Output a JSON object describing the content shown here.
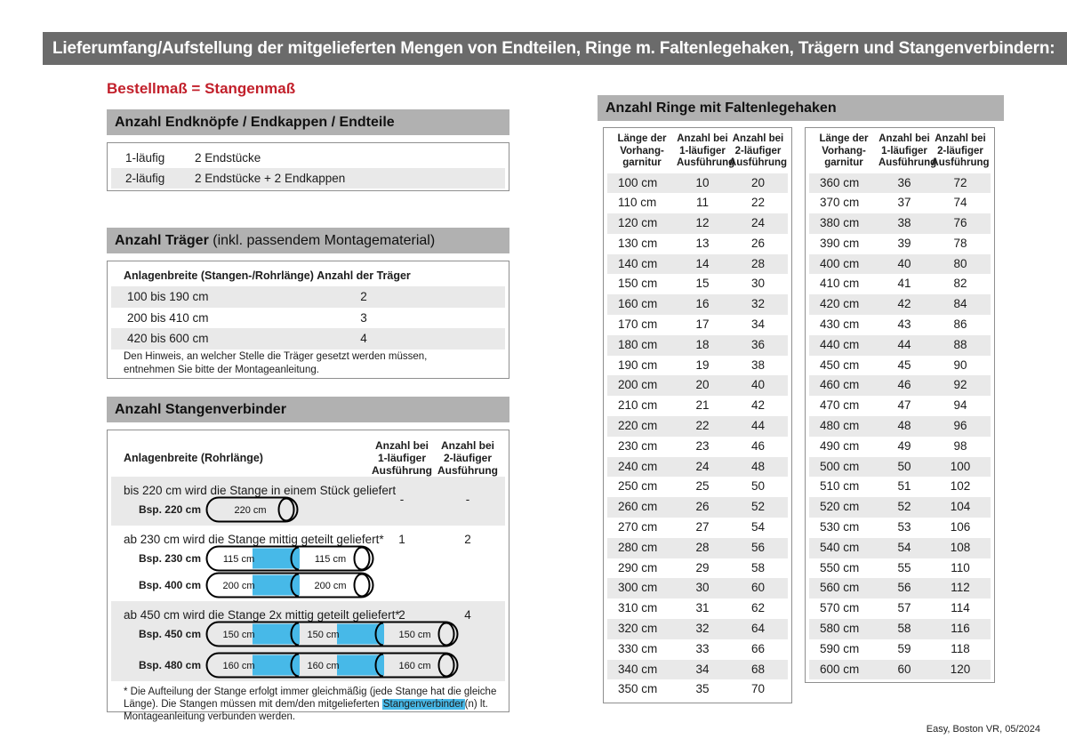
{
  "page": {
    "title": "Lieferumfang/Aufstellung der mitgelieferten Mengen von Endteilen, Ringe m. Faltenlegehaken, Trägern und Stangenverbindern:",
    "subtitle": "Bestellmaß = Stangenmaß",
    "footer": "Easy, Boston VR, 05/2024"
  },
  "colors": {
    "title_bar_bg": "#6b6b6b",
    "section_bar_bg": "#b1b1b1",
    "row_alt_bg": "#e9e9e9",
    "accent_red": "#c2202b",
    "connector_blue": "#47b9e8"
  },
  "endteile": {
    "title": "Anzahl Endknöpfe / Endkappen / Endteile",
    "rows": [
      {
        "label": "1-läufig",
        "value": "2 Endstücke"
      },
      {
        "label": "2-läufig",
        "value": "2 Endstücke + 2 Endkappen"
      }
    ]
  },
  "traeger": {
    "title_bold": "Anzahl Träger",
    "title_rest": " (inkl. passendem Montagematerial)",
    "col1": "Anlagenbreite (Stangen-/Rohrlänge)",
    "col2": "Anzahl der Träger",
    "rows": [
      {
        "range": "100 bis 190 cm",
        "count": "2"
      },
      {
        "range": "200 bis 410 cm",
        "count": "3"
      },
      {
        "range": "420 bis 600 cm",
        "count": "4"
      }
    ],
    "note": "Den Hinweis, an welcher Stelle die Träger gesetzt werden müssen, entnehmen Sie bitte der Montageanleitung."
  },
  "verbinder": {
    "title": "Anzahl Stangenverbinder",
    "col1": "Anlagenbreite (Rohrlänge)",
    "col2": "Anzahl bei\n1-läufiger\nAusführung",
    "col3": "Anzahl bei\n2-läufiger\nAusführung",
    "rows": [
      {
        "text": "bis 220 cm wird die Stange in einem Stück geliefert",
        "count1": "-",
        "count2": "-",
        "examples": [
          {
            "label": "Bsp. 220 cm",
            "segments": [
              "220 cm"
            ]
          }
        ]
      },
      {
        "text": "ab 230 cm wird die Stange mittig geteilt geliefert*",
        "count1": "1",
        "count2": "2",
        "examples": [
          {
            "label": "Bsp. 230 cm",
            "segments": [
              "115 cm",
              "115 cm"
            ]
          },
          {
            "label": "Bsp. 400 cm",
            "segments": [
              "200 cm",
              "200 cm"
            ]
          }
        ]
      },
      {
        "text": "ab 450 cm wird die Stange 2x mittig geteilt geliefert*",
        "count1": "2",
        "count2": "4",
        "examples": [
          {
            "label": "Bsp. 450 cm",
            "segments": [
              "150 cm",
              "150 cm",
              "150 cm"
            ]
          },
          {
            "label": "Bsp. 480 cm",
            "segments": [
              "160 cm",
              "160 cm",
              "160 cm"
            ]
          }
        ]
      }
    ],
    "footnote_pre": "* Die Aufteilung der Stange erfolgt immer gleichmäßig (jede Stange hat die gleiche Länge). Die Stangen müssen mit dem/den mitgelieferten ",
    "footnote_highlight": "Stangenverbinder",
    "footnote_post": "(n) lt. Montageanleitung verbunden werden."
  },
  "ringe": {
    "title": "Anzahl Ringe mit Faltenlegehaken",
    "col1": "Länge der\nVorhang-\ngarnitur",
    "col2": "Anzahl bei\n1-läufiger\nAusführung",
    "col3": "Anzahl bei\n2-läufiger\nAusführung",
    "left_rows": [
      [
        "100 cm",
        "10",
        "20"
      ],
      [
        "110 cm",
        "11",
        "22"
      ],
      [
        "120 cm",
        "12",
        "24"
      ],
      [
        "130 cm",
        "13",
        "26"
      ],
      [
        "140 cm",
        "14",
        "28"
      ],
      [
        "150 cm",
        "15",
        "30"
      ],
      [
        "160 cm",
        "16",
        "32"
      ],
      [
        "170 cm",
        "17",
        "34"
      ],
      [
        "180 cm",
        "18",
        "36"
      ],
      [
        "190 cm",
        "19",
        "38"
      ],
      [
        "200 cm",
        "20",
        "40"
      ],
      [
        "210 cm",
        "21",
        "42"
      ],
      [
        "220 cm",
        "22",
        "44"
      ],
      [
        "230 cm",
        "23",
        "46"
      ],
      [
        "240 cm",
        "24",
        "48"
      ],
      [
        "250 cm",
        "25",
        "50"
      ],
      [
        "260 cm",
        "26",
        "52"
      ],
      [
        "270 cm",
        "27",
        "54"
      ],
      [
        "280 cm",
        "28",
        "56"
      ],
      [
        "290 cm",
        "29",
        "58"
      ],
      [
        "300 cm",
        "30",
        "60"
      ],
      [
        "310 cm",
        "31",
        "62"
      ],
      [
        "320 cm",
        "32",
        "64"
      ],
      [
        "330 cm",
        "33",
        "66"
      ],
      [
        "340 cm",
        "34",
        "68"
      ],
      [
        "350 cm",
        "35",
        "70"
      ]
    ],
    "right_rows": [
      [
        "360 cm",
        "36",
        "72"
      ],
      [
        "370 cm",
        "37",
        "74"
      ],
      [
        "380 cm",
        "38",
        "76"
      ],
      [
        "390 cm",
        "39",
        "78"
      ],
      [
        "400 cm",
        "40",
        "80"
      ],
      [
        "410 cm",
        "41",
        "82"
      ],
      [
        "420 cm",
        "42",
        "84"
      ],
      [
        "430 cm",
        "43",
        "86"
      ],
      [
        "440 cm",
        "44",
        "88"
      ],
      [
        "450 cm",
        "45",
        "90"
      ],
      [
        "460 cm",
        "46",
        "92"
      ],
      [
        "470 cm",
        "47",
        "94"
      ],
      [
        "480 cm",
        "48",
        "96"
      ],
      [
        "490 cm",
        "49",
        "98"
      ],
      [
        "500 cm",
        "50",
        "100"
      ],
      [
        "510 cm",
        "51",
        "102"
      ],
      [
        "520 cm",
        "52",
        "104"
      ],
      [
        "530 cm",
        "53",
        "106"
      ],
      [
        "540 cm",
        "54",
        "108"
      ],
      [
        "550 cm",
        "55",
        "110"
      ],
      [
        "560 cm",
        "56",
        "112"
      ],
      [
        "570 cm",
        "57",
        "114"
      ],
      [
        "580 cm",
        "58",
        "116"
      ],
      [
        "590 cm",
        "59",
        "118"
      ],
      [
        "600 cm",
        "60",
        "120"
      ]
    ]
  }
}
